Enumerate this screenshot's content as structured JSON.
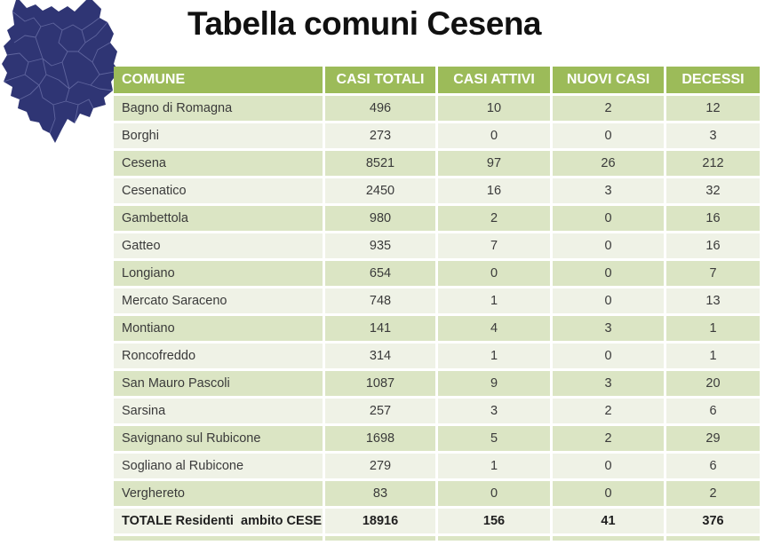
{
  "page": {
    "title": "Tabella comuni Cesena"
  },
  "map": {
    "label": "cesena-district-map",
    "fill": "#2f3574",
    "boundary_color": "#7a7fb5"
  },
  "table": {
    "columns": [
      "COMUNE",
      "CASI TOTALI",
      "CASI ATTIVI",
      "NUOVI CASI",
      "DECESSI"
    ],
    "rows": [
      [
        "Bagno di Romagna",
        "496",
        "10",
        "2",
        "12"
      ],
      [
        "Borghi",
        "273",
        "0",
        "0",
        "3"
      ],
      [
        "Cesena",
        "8521",
        "97",
        "26",
        "212"
      ],
      [
        "Cesenatico",
        "2450",
        "16",
        "3",
        "32"
      ],
      [
        "Gambettola",
        "980",
        "2",
        "0",
        "16"
      ],
      [
        "Gatteo",
        "935",
        "7",
        "0",
        "16"
      ],
      [
        "Longiano",
        "654",
        "0",
        "0",
        "7"
      ],
      [
        "Mercato Saraceno",
        "748",
        "1",
        "0",
        "13"
      ],
      [
        "Montiano",
        "141",
        "4",
        "3",
        "1"
      ],
      [
        "Roncofreddo",
        "314",
        "1",
        "0",
        "1"
      ],
      [
        "San Mauro Pascoli",
        "1087",
        "9",
        "3",
        "20"
      ],
      [
        "Sarsina",
        "257",
        "3",
        "2",
        "6"
      ],
      [
        "Savignano sul Rubicone",
        "1698",
        "5",
        "2",
        "29"
      ],
      [
        "Sogliano al Rubicone",
        "279",
        "1",
        "0",
        "6"
      ],
      [
        "Verghereto",
        "83",
        "0",
        "0",
        "2"
      ]
    ],
    "total_row": [
      "TOTALE Residenti  ambito CESENA",
      "18916",
      "156",
      "41",
      "376"
    ],
    "colors": {
      "header_bg": "#9cbb59",
      "band_dark": "#dbe5c4",
      "band_light": "#eff2e6",
      "header_text": "#ffffff",
      "body_text": "#3a3a3a"
    }
  }
}
